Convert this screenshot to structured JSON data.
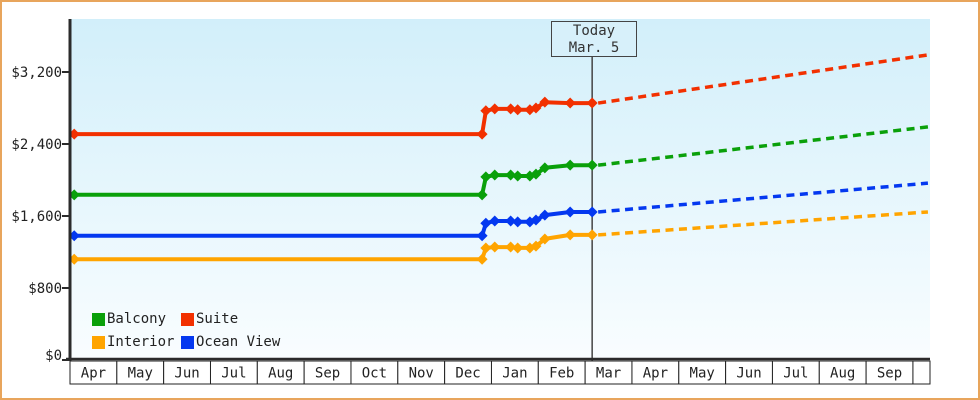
{
  "window": {
    "border_color": "#e8a55c",
    "background": "#ffffff"
  },
  "chart_data": {
    "type": "line",
    "title": "",
    "description": "Cruise cabin price history by category with dashed future price projection",
    "plot_background": {
      "top_color": "#d2effa",
      "bottom_color": "#f9fdff"
    },
    "axis_color": "#2b2b2b",
    "text_color": "#222222",
    "grid": false,
    "y_axis": {
      "ticks": [
        {
          "label": "$0",
          "value": 0
        },
        {
          "label": "$800",
          "value": 800
        },
        {
          "label": "$1,600",
          "value": 1600
        },
        {
          "label": "$2,400",
          "value": 2400
        },
        {
          "label": "$3,200",
          "value": 3200
        }
      ],
      "min": 0,
      "max": 3790
    },
    "x_axis": {
      "months": [
        "Apr",
        "May",
        "Jun",
        "Jul",
        "Aug",
        "Sep",
        "Oct",
        "Nov",
        "Dec",
        "Jan",
        "Feb",
        "Mar",
        "Apr",
        "May",
        "Jun",
        "Jul",
        "Aug",
        "Sep"
      ]
    },
    "today": {
      "line1": "Today",
      "line2": "Mar. 5",
      "t": 11.15
    },
    "series": [
      {
        "name": "Suite",
        "color": "#f23000",
        "history": [
          {
            "t": 0.09,
            "date": "Apr",
            "value": 2510
          },
          {
            "t": 8.8,
            "date": "Dec 25",
            "value": 2510
          },
          {
            "t": 8.88,
            "date": "Dec 27",
            "value": 2770
          },
          {
            "t": 9.07,
            "date": "Jan 3",
            "value": 2790
          },
          {
            "t": 9.41,
            "date": "Jan 13",
            "value": 2790
          },
          {
            "t": 9.56,
            "date": "Jan 17",
            "value": 2780
          },
          {
            "t": 9.82,
            "date": "Jan 25",
            "value": 2780
          },
          {
            "t": 9.95,
            "date": "Jan 29",
            "value": 2800
          },
          {
            "t": 10.14,
            "date": "Feb 4",
            "value": 2865
          },
          {
            "t": 10.68,
            "date": "Feb 21",
            "value": 2855
          },
          {
            "t": 11.15,
            "date": "Mar 5",
            "value": 2855
          }
        ],
        "projection_end": {
          "t": 18.32,
          "value": 3390
        }
      },
      {
        "name": "Balcony",
        "color": "#0aa00a",
        "history": [
          {
            "t": 0.09,
            "date": "Apr",
            "value": 1835
          },
          {
            "t": 8.8,
            "date": "Dec 25",
            "value": 1835
          },
          {
            "t": 8.88,
            "date": "Dec 27",
            "value": 2035
          },
          {
            "t": 9.07,
            "date": "Jan 3",
            "value": 2055
          },
          {
            "t": 9.41,
            "date": "Jan 13",
            "value": 2055
          },
          {
            "t": 9.56,
            "date": "Jan 17",
            "value": 2045
          },
          {
            "t": 9.82,
            "date": "Jan 25",
            "value": 2045
          },
          {
            "t": 9.95,
            "date": "Jan 29",
            "value": 2065
          },
          {
            "t": 10.14,
            "date": "Feb 4",
            "value": 2135
          },
          {
            "t": 10.68,
            "date": "Feb 21",
            "value": 2165
          },
          {
            "t": 11.15,
            "date": "Mar 5",
            "value": 2165
          }
        ],
        "projection_end": {
          "t": 18.32,
          "value": 2590
        }
      },
      {
        "name": "Ocean View",
        "color": "#0438f0",
        "history": [
          {
            "t": 0.09,
            "date": "Apr",
            "value": 1380
          },
          {
            "t": 8.8,
            "date": "Dec 25",
            "value": 1380
          },
          {
            "t": 8.88,
            "date": "Dec 27",
            "value": 1520
          },
          {
            "t": 9.07,
            "date": "Jan 3",
            "value": 1545
          },
          {
            "t": 9.41,
            "date": "Jan 13",
            "value": 1545
          },
          {
            "t": 9.56,
            "date": "Jan 17",
            "value": 1535
          },
          {
            "t": 9.82,
            "date": "Jan 25",
            "value": 1535
          },
          {
            "t": 9.95,
            "date": "Jan 29",
            "value": 1555
          },
          {
            "t": 10.14,
            "date": "Feb 4",
            "value": 1610
          },
          {
            "t": 10.68,
            "date": "Feb 21",
            "value": 1645
          },
          {
            "t": 11.15,
            "date": "Mar 5",
            "value": 1645
          }
        ],
        "projection_end": {
          "t": 18.32,
          "value": 1965
        }
      },
      {
        "name": "Interior",
        "color": "#ffa400",
        "history": [
          {
            "t": 0.09,
            "date": "Apr",
            "value": 1120
          },
          {
            "t": 8.8,
            "date": "Dec 25",
            "value": 1120
          },
          {
            "t": 8.88,
            "date": "Dec 27",
            "value": 1245
          },
          {
            "t": 9.07,
            "date": "Jan 3",
            "value": 1255
          },
          {
            "t": 9.41,
            "date": "Jan 13",
            "value": 1255
          },
          {
            "t": 9.56,
            "date": "Jan 17",
            "value": 1245
          },
          {
            "t": 9.82,
            "date": "Jan 25",
            "value": 1245
          },
          {
            "t": 9.95,
            "date": "Jan 29",
            "value": 1265
          },
          {
            "t": 10.14,
            "date": "Feb 4",
            "value": 1345
          },
          {
            "t": 10.68,
            "date": "Feb 21",
            "value": 1390
          },
          {
            "t": 11.15,
            "date": "Mar 5",
            "value": 1390
          }
        ],
        "projection_end": {
          "t": 18.32,
          "value": 1645
        }
      }
    ],
    "legend": {
      "position": "bottom-left",
      "items": [
        {
          "label": "Balcony",
          "series": "Balcony"
        },
        {
          "label": "Suite",
          "series": "Suite"
        },
        {
          "label": "Interior",
          "series": "Interior"
        },
        {
          "label": "Ocean View",
          "series": "Ocean View"
        }
      ]
    }
  }
}
